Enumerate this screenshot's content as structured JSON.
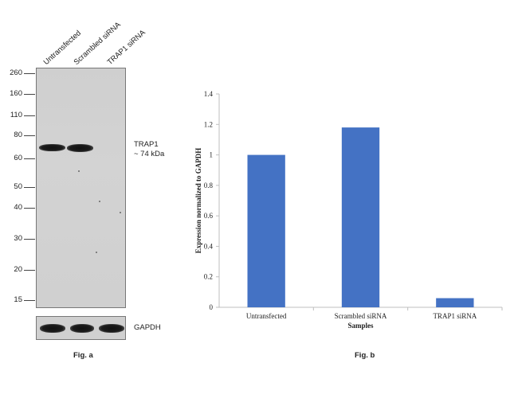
{
  "figure_a": {
    "caption": "Fig. a",
    "lanes": [
      "Untransfected",
      "Scrambled siRNA",
      "TRAP1 siRNA"
    ],
    "mw_markers": [
      "260",
      "160",
      "110",
      "80",
      "60",
      "50",
      "40",
      "30",
      "20",
      "15"
    ],
    "band_label_line1": "TRAP1",
    "band_label_line2": "~ 74 kDa",
    "loading_control_label": "GAPDH"
  },
  "figure_b": {
    "caption": "Fig. b"
  },
  "chart_data": {
    "type": "bar",
    "categories": [
      "Untransfected",
      "Scrambled siRNA",
      "TRAP1 siRNA"
    ],
    "values": [
      1.0,
      1.18,
      0.06
    ],
    "xlabel": "Samples",
    "ylabel": "Expression normalized to GAPDH",
    "ylim": [
      0,
      1.4
    ],
    "yticks": [
      0,
      0.2,
      0.4,
      0.6,
      0.8,
      1,
      1.2,
      1.4
    ],
    "ytick_labels": [
      "0",
      "0.2",
      "0.4",
      "0.6",
      "0.8",
      "1",
      "1.2",
      "1.4"
    ],
    "bar_color": "#4472C4",
    "grid": false,
    "legend": "none"
  }
}
